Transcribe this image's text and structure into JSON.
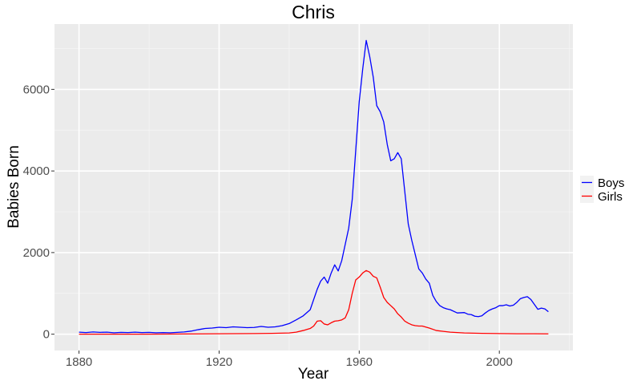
{
  "chart_data": {
    "type": "line",
    "title": "Chris",
    "xlabel": "Year",
    "ylabel": "Babies Born",
    "xlim": [
      1873,
      2021
    ],
    "ylim": [
      -400,
      7600
    ],
    "x_ticks": [
      1880,
      1920,
      1960,
      2000
    ],
    "y_ticks": [
      0,
      2000,
      4000,
      6000
    ],
    "x_tick_labels": [
      "1880",
      "1920",
      "1960",
      "2000"
    ],
    "y_tick_labels": [
      "0",
      "2000",
      "4000",
      "6000"
    ],
    "grid": true,
    "legend_position": "right",
    "background": "#ebebeb",
    "series": [
      {
        "name": "Boys",
        "color": "#0000ff",
        "points": [
          [
            1880,
            50
          ],
          [
            1882,
            40
          ],
          [
            1884,
            55
          ],
          [
            1886,
            45
          ],
          [
            1888,
            50
          ],
          [
            1890,
            35
          ],
          [
            1892,
            45
          ],
          [
            1894,
            40
          ],
          [
            1896,
            50
          ],
          [
            1898,
            40
          ],
          [
            1900,
            45
          ],
          [
            1902,
            35
          ],
          [
            1904,
            40
          ],
          [
            1906,
            35
          ],
          [
            1908,
            45
          ],
          [
            1910,
            55
          ],
          [
            1912,
            75
          ],
          [
            1914,
            110
          ],
          [
            1916,
            140
          ],
          [
            1918,
            150
          ],
          [
            1920,
            170
          ],
          [
            1922,
            160
          ],
          [
            1924,
            180
          ],
          [
            1926,
            170
          ],
          [
            1928,
            160
          ],
          [
            1930,
            165
          ],
          [
            1932,
            190
          ],
          [
            1934,
            170
          ],
          [
            1936,
            180
          ],
          [
            1938,
            210
          ],
          [
            1940,
            260
          ],
          [
            1942,
            350
          ],
          [
            1944,
            450
          ],
          [
            1946,
            600
          ],
          [
            1948,
            1100
          ],
          [
            1949,
            1300
          ],
          [
            1950,
            1400
          ],
          [
            1951,
            1250
          ],
          [
            1952,
            1500
          ],
          [
            1953,
            1700
          ],
          [
            1954,
            1550
          ],
          [
            1955,
            1800
          ],
          [
            1956,
            2200
          ],
          [
            1957,
            2600
          ],
          [
            1958,
            3300
          ],
          [
            1959,
            4500
          ],
          [
            1960,
            5700
          ],
          [
            1961,
            6500
          ],
          [
            1962,
            7200
          ],
          [
            1963,
            6800
          ],
          [
            1964,
            6300
          ],
          [
            1965,
            5600
          ],
          [
            1966,
            5450
          ],
          [
            1967,
            5200
          ],
          [
            1968,
            4650
          ],
          [
            1969,
            4250
          ],
          [
            1970,
            4300
          ],
          [
            1971,
            4450
          ],
          [
            1972,
            4300
          ],
          [
            1973,
            3500
          ],
          [
            1974,
            2700
          ],
          [
            1975,
            2300
          ],
          [
            1976,
            1950
          ],
          [
            1977,
            1600
          ],
          [
            1978,
            1500
          ],
          [
            1979,
            1350
          ],
          [
            1980,
            1250
          ],
          [
            1981,
            950
          ],
          [
            1982,
            800
          ],
          [
            1983,
            700
          ],
          [
            1984,
            650
          ],
          [
            1985,
            620
          ],
          [
            1986,
            600
          ],
          [
            1988,
            520
          ],
          [
            1990,
            530
          ],
          [
            1991,
            490
          ],
          [
            1992,
            480
          ],
          [
            1993,
            440
          ],
          [
            1994,
            430
          ],
          [
            1995,
            450
          ],
          [
            1996,
            520
          ],
          [
            1997,
            580
          ],
          [
            1998,
            620
          ],
          [
            1999,
            650
          ],
          [
            2000,
            700
          ],
          [
            2001,
            700
          ],
          [
            2002,
            720
          ],
          [
            2003,
            690
          ],
          [
            2004,
            710
          ],
          [
            2005,
            780
          ],
          [
            2006,
            870
          ],
          [
            2007,
            900
          ],
          [
            2008,
            920
          ],
          [
            2009,
            850
          ],
          [
            2010,
            730
          ],
          [
            2011,
            610
          ],
          [
            2012,
            640
          ],
          [
            2013,
            620
          ],
          [
            2014,
            550
          ]
        ]
      },
      {
        "name": "Girls",
        "color": "#ff0000",
        "points": [
          [
            1880,
            0
          ],
          [
            1890,
            0
          ],
          [
            1900,
            0
          ],
          [
            1910,
            5
          ],
          [
            1920,
            10
          ],
          [
            1930,
            15
          ],
          [
            1935,
            20
          ],
          [
            1940,
            30
          ],
          [
            1942,
            50
          ],
          [
            1944,
            90
          ],
          [
            1946,
            140
          ],
          [
            1947,
            200
          ],
          [
            1948,
            320
          ],
          [
            1949,
            330
          ],
          [
            1950,
            250
          ],
          [
            1951,
            230
          ],
          [
            1952,
            280
          ],
          [
            1953,
            320
          ],
          [
            1954,
            330
          ],
          [
            1955,
            350
          ],
          [
            1956,
            400
          ],
          [
            1957,
            600
          ],
          [
            1958,
            1000
          ],
          [
            1959,
            1330
          ],
          [
            1960,
            1400
          ],
          [
            1961,
            1500
          ],
          [
            1962,
            1560
          ],
          [
            1963,
            1520
          ],
          [
            1964,
            1420
          ],
          [
            1965,
            1380
          ],
          [
            1966,
            1150
          ],
          [
            1967,
            900
          ],
          [
            1968,
            780
          ],
          [
            1969,
            700
          ],
          [
            1970,
            620
          ],
          [
            1971,
            500
          ],
          [
            1972,
            420
          ],
          [
            1973,
            320
          ],
          [
            1974,
            270
          ],
          [
            1975,
            230
          ],
          [
            1976,
            210
          ],
          [
            1977,
            200
          ],
          [
            1978,
            200
          ],
          [
            1980,
            150
          ],
          [
            1982,
            90
          ],
          [
            1984,
            70
          ],
          [
            1986,
            50
          ],
          [
            1988,
            40
          ],
          [
            1990,
            30
          ],
          [
            1995,
            20
          ],
          [
            2000,
            15
          ],
          [
            2005,
            10
          ],
          [
            2010,
            10
          ],
          [
            2014,
            8
          ]
        ]
      }
    ]
  }
}
